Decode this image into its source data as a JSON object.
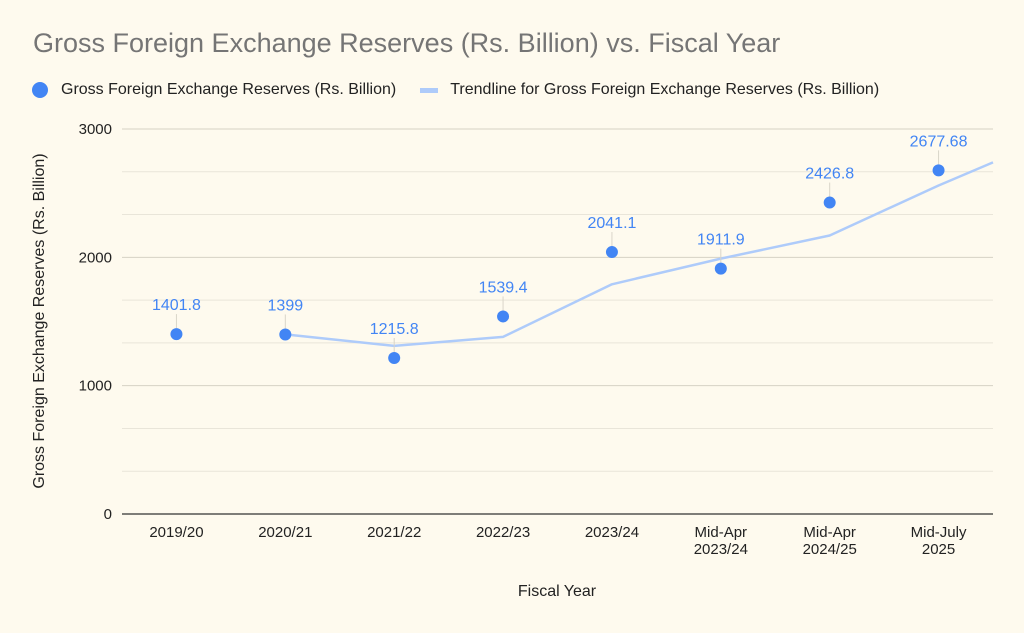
{
  "chart_data": {
    "type": "scatter",
    "title": "Gross Foreign Exchange Reserves (Rs. Billion) vs. Fiscal Year",
    "xlabel": "Fiscal Year",
    "ylabel": "Gross Foreign Exchange Reserves (Rs. Billion)",
    "ylim": [
      0,
      3000
    ],
    "yticks": [
      0,
      1000,
      2000,
      3000
    ],
    "minor_gridlines": [
      333.3,
      666.7,
      1333.3,
      1666.7,
      2333.3,
      2666.7
    ],
    "grid": true,
    "legend_position": "top-left",
    "categories": [
      [
        "2019/20"
      ],
      [
        "2020/21"
      ],
      [
        "2021/22"
      ],
      [
        "2022/23"
      ],
      [
        "2023/24"
      ],
      [
        "Mid-Apr",
        "2023/24"
      ],
      [
        "Mid-Apr",
        "2024/25"
      ],
      [
        "Mid-July",
        "2025"
      ]
    ],
    "series": [
      {
        "name": "Gross Foreign Exchange Reserves (Rs. Billion)",
        "kind": "points",
        "color": "#4285f4",
        "values": [
          1401.8,
          1399,
          1215.8,
          1539.4,
          2041.1,
          1911.9,
          2426.8,
          2677.68
        ],
        "labels": [
          "1401.8",
          "1399",
          "1215.8",
          "1539.4",
          "2041.1",
          "1911.9",
          "2426.8",
          "2677.68"
        ]
      },
      {
        "name": "Trendline for Gross Foreign Exchange Reserves (Rs. Billion)",
        "kind": "trendline",
        "color": "#aecbfa",
        "values": [
          null,
          1400,
          1310,
          1380,
          1790,
          1990,
          2170,
          2560
        ],
        "extends_to_edge_value": 2740
      }
    ]
  }
}
